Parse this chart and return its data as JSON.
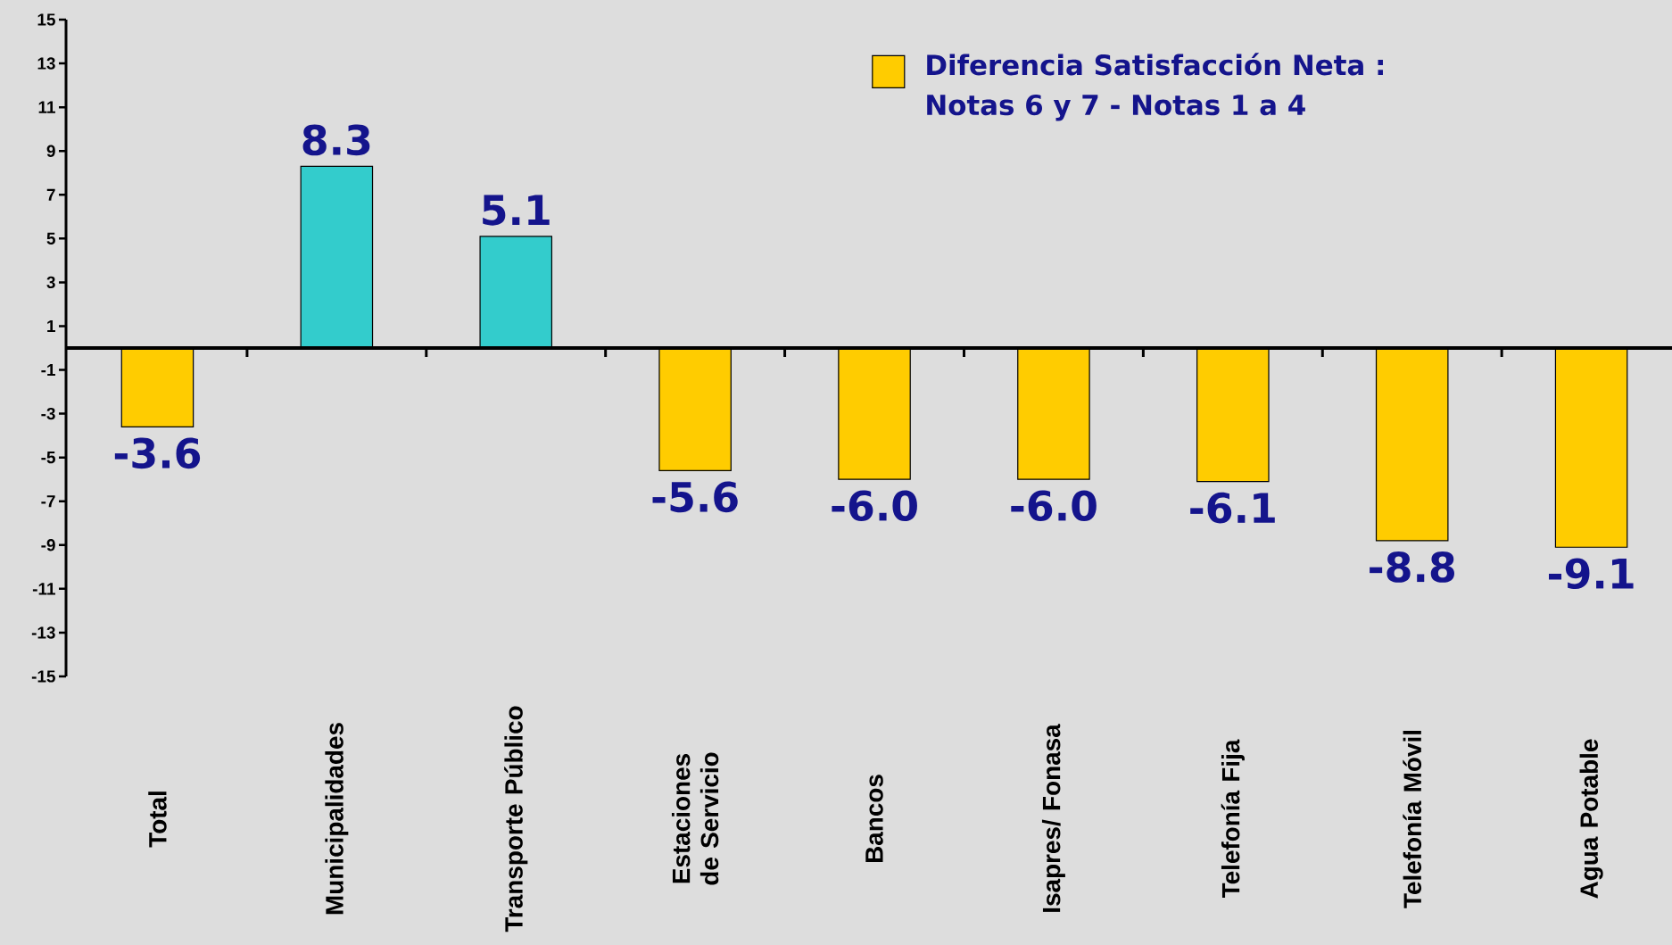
{
  "chart_data": {
    "type": "bar",
    "categories": [
      "Total",
      "Municipalidades",
      "Transporte Público",
      "Estaciones de Servicio",
      "Bancos",
      "Isapres/ Fonasa",
      "Telefonía Fija",
      "Telefonía Móvil",
      "Agua Potable"
    ],
    "series": [
      {
        "name": "Diferencia Satisfacción Neta : Notas 6 y 7 - Notas 1 a 4",
        "color": "#ffcc00",
        "values": [
          -3.6,
          8.3,
          5.1,
          -5.6,
          -6.0,
          -6.0,
          -6.1,
          -8.8,
          -9.1
        ],
        "value_labels": [
          "-3.6",
          "8.3",
          "5.1",
          "-5.6",
          "-6.0",
          "-6.0",
          "-6.1",
          "-8.8",
          "-9.1"
        ],
        "colors": [
          "#ffcc00",
          "#33cccc",
          "#33cccc",
          "#ffcc00",
          "#ffcc00",
          "#ffcc00",
          "#ffcc00",
          "#ffcc00",
          "#ffcc00"
        ]
      }
    ],
    "ylim": [
      -15,
      15
    ],
    "yticks": [
      -15,
      -13,
      -11,
      -9,
      -7,
      -5,
      -3,
      -1,
      1,
      3,
      5,
      7,
      9,
      11,
      13,
      15
    ],
    "legend": "top right"
  }
}
